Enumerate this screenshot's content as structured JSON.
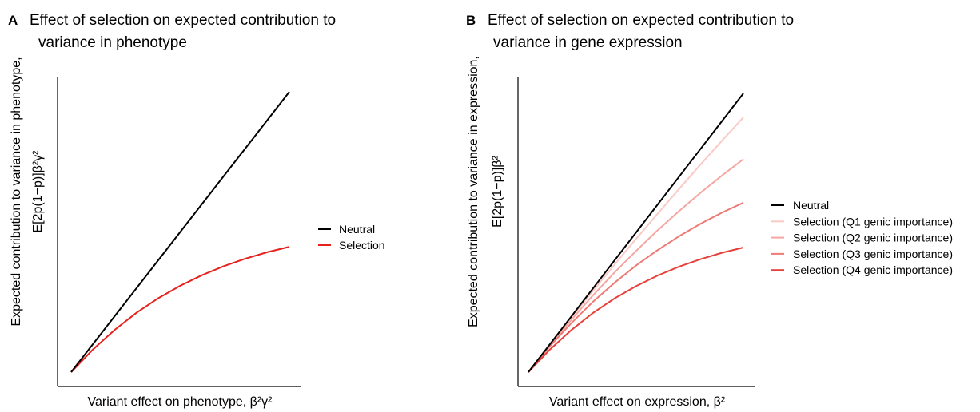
{
  "chart_data": [
    {
      "type": "line",
      "panel": "A",
      "title_line1": "Effect of selection on expected contribution to",
      "title_line2": "variance in phenotype",
      "xlabel": "Variant effect on phenotype, β²γ²",
      "ylabel_line1": "Expected contribution to variance in phenotype,",
      "ylabel_line2": "E[2p(1−p)]β²γ²",
      "legend_position": "right",
      "xlim": [
        0,
        1
      ],
      "ylim": [
        0,
        1
      ],
      "x": [
        0.0,
        0.1,
        0.2,
        0.3,
        0.4,
        0.5,
        0.6,
        0.7,
        0.8,
        0.9,
        1.0
      ],
      "series": [
        {
          "name": "Neutral",
          "color": "#000000",
          "values": [
            0.0,
            0.1,
            0.2,
            0.3,
            0.4,
            0.5,
            0.6,
            0.7,
            0.8,
            0.9,
            1.0
          ]
        },
        {
          "name": "Selection",
          "color": "#e8201c",
          "values": [
            0.0,
            0.081,
            0.151,
            0.212,
            0.264,
            0.308,
            0.346,
            0.378,
            0.405,
            0.428,
            0.447
          ]
        }
      ]
    },
    {
      "type": "line",
      "panel": "B",
      "title_line1": "Effect of selection on expected contribution to",
      "title_line2": "variance in gene expression",
      "xlabel": "Variant effect on expression, β²",
      "ylabel_line1": "Expected contribution to variance in expression,",
      "ylabel_line2": "E[2p(1−p)]β²",
      "legend_position": "right",
      "xlim": [
        0,
        1
      ],
      "ylim": [
        0,
        1
      ],
      "x": [
        0.0,
        0.1,
        0.2,
        0.3,
        0.4,
        0.5,
        0.6,
        0.7,
        0.8,
        0.9,
        1.0
      ],
      "series": [
        {
          "name": "Neutral",
          "color": "#000000",
          "values": [
            0.0,
            0.1,
            0.2,
            0.3,
            0.4,
            0.5,
            0.6,
            0.7,
            0.8,
            0.9,
            1.0
          ]
        },
        {
          "name": "Selection (Q1 genic importance)",
          "color": "#f9c9c6",
          "values": [
            0.0,
            0.099,
            0.196,
            0.291,
            0.385,
            0.477,
            0.567,
            0.656,
            0.744,
            0.83,
            0.914
          ]
        },
        {
          "name": "Selection (Q2 genic importance)",
          "color": "#f5a6a2",
          "values": [
            0.0,
            0.097,
            0.188,
            0.275,
            0.357,
            0.434,
            0.508,
            0.577,
            0.643,
            0.705,
            0.764
          ]
        },
        {
          "name": "Selection (Q3 genic importance)",
          "color": "#ee7b76",
          "values": [
            0.0,
            0.093,
            0.176,
            0.252,
            0.32,
            0.382,
            0.437,
            0.487,
            0.532,
            0.572,
            0.608
          ]
        },
        {
          "name": "Selection (Q4 genic importance)",
          "color": "#e8403a",
          "values": [
            0.0,
            0.081,
            0.151,
            0.212,
            0.264,
            0.308,
            0.346,
            0.378,
            0.405,
            0.428,
            0.447
          ]
        }
      ]
    }
  ]
}
